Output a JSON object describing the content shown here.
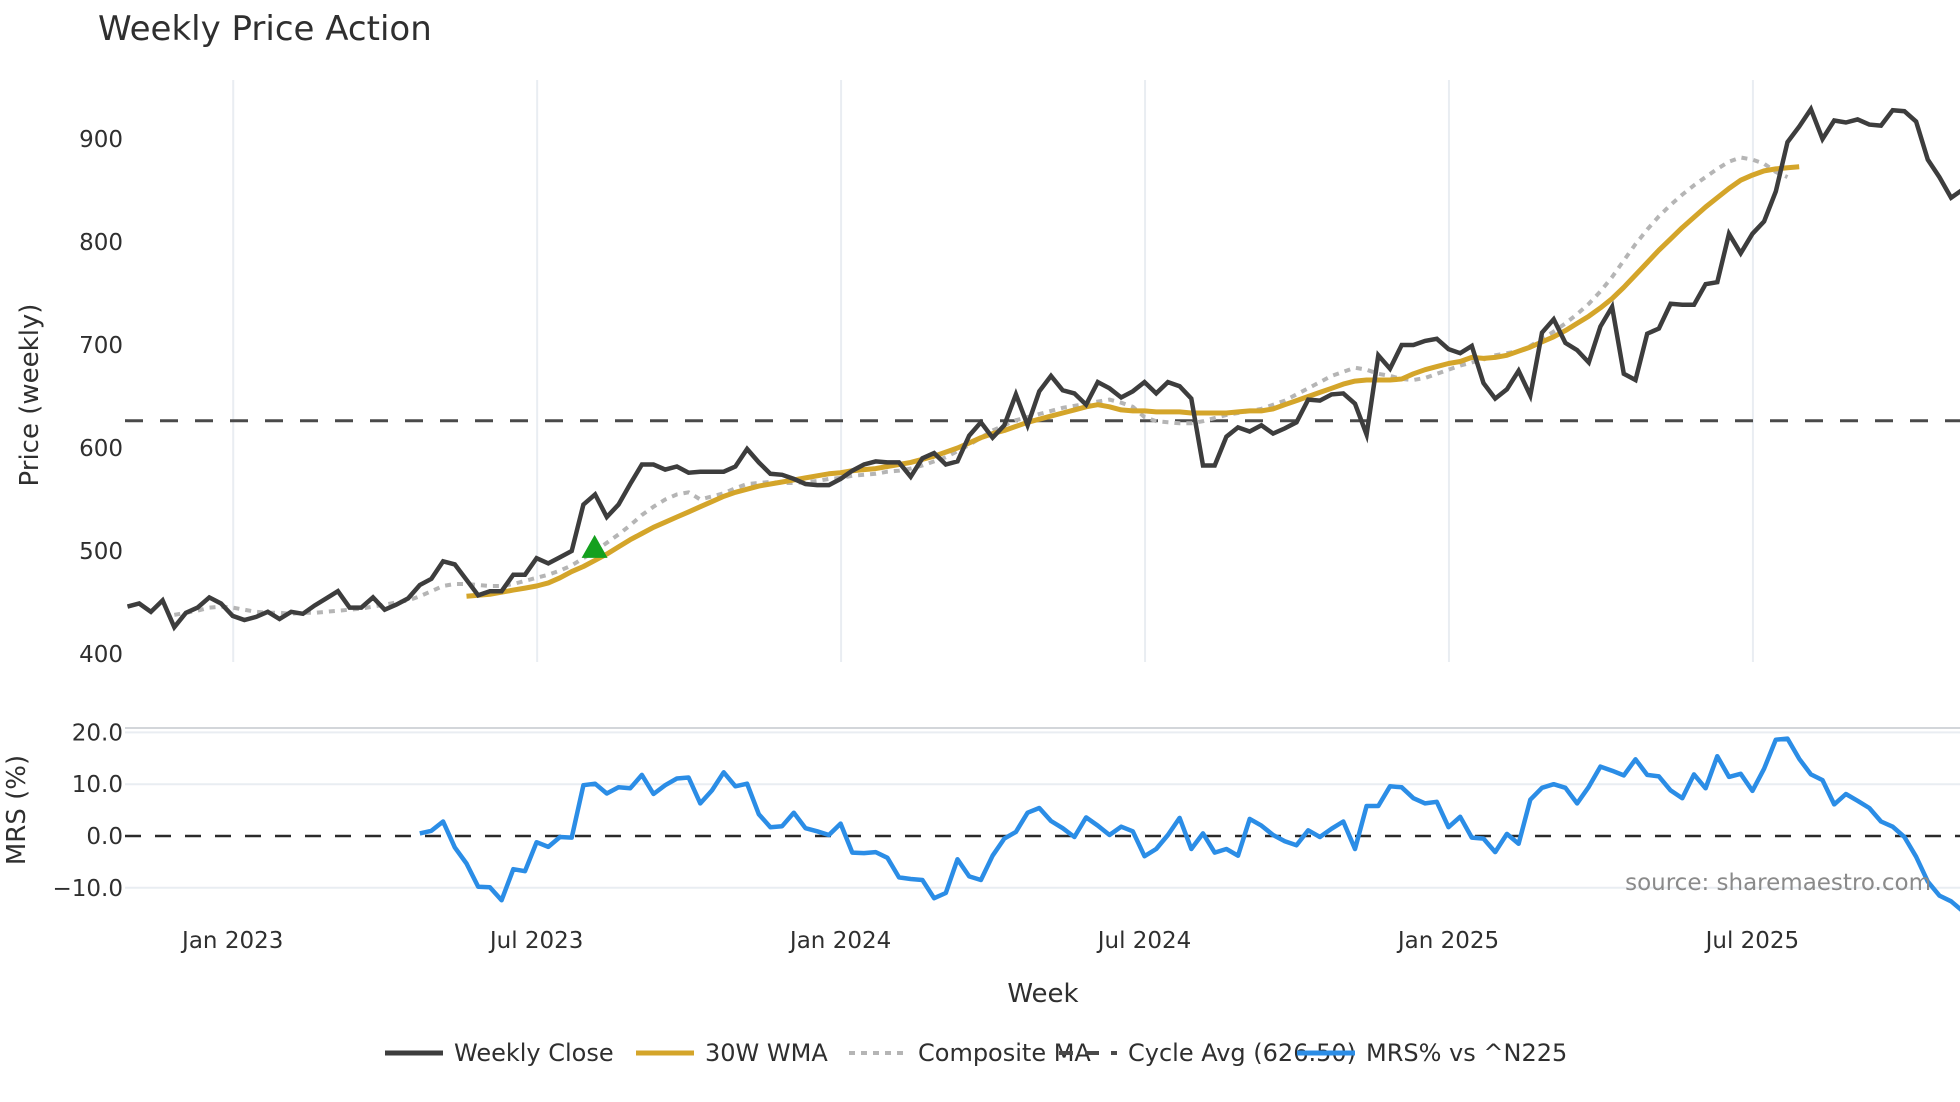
{
  "title": "Weekly Price Action",
  "source_label": "source: sharemaestro.com",
  "colors": {
    "weekly_close": "#3d3d3d",
    "wma": "#d4a52a",
    "composite": "#b5b5b5",
    "cycle_avg": "#4a4a4a",
    "mrs": "#2b8de6",
    "signal": "#14a01e",
    "grid": "#e9edf2"
  },
  "legend": [
    {
      "label": "Weekly Close",
      "style": "solid",
      "color": "#3d3d3d"
    },
    {
      "label": "30W WMA",
      "style": "solid",
      "color": "#d4a52a"
    },
    {
      "label": "Composite MA",
      "style": "dotted",
      "color": "#b5b5b5"
    },
    {
      "label": "Cycle Avg (626.50)",
      "style": "dashed",
      "color": "#4a4a4a"
    },
    {
      "label": "MRS% vs ^N225",
      "style": "solid",
      "color": "#2b8de6"
    }
  ],
  "chart_data": [
    {
      "type": "line",
      "title": "Weekly Price Action",
      "xlabel": "Week",
      "ylabel": "Price (weekly)",
      "ylim": [
        400,
        950
      ],
      "yticks": [
        400,
        500,
        600,
        700,
        800,
        900
      ],
      "xticks": [
        "Jan 2023",
        "Jul 2023",
        "Jan 2024",
        "Jul 2024",
        "Jan 2025",
        "Jul 2025"
      ],
      "xtick_week_index": [
        9,
        35,
        61,
        87,
        113,
        139
      ],
      "x_start": "2022-10-31",
      "x_step": "1 week",
      "grid": true,
      "series": [
        {
          "name": "Weekly Close",
          "values": [
            446,
            449,
            441,
            452,
            426,
            440,
            445,
            455,
            449,
            437,
            433,
            436,
            441,
            434,
            441,
            439,
            447,
            454,
            461,
            445,
            445,
            455,
            443,
            448,
            454,
            467,
            473,
            490,
            487,
            472,
            457,
            461,
            461,
            477,
            477,
            493,
            488,
            494,
            500,
            545,
            555,
            533,
            545,
            565,
            584,
            584,
            579,
            582,
            576,
            577,
            577,
            577,
            582,
            599,
            586,
            575,
            574,
            570,
            565,
            564,
            564,
            570,
            578,
            584,
            587,
            586,
            586,
            572,
            590,
            595,
            584,
            587,
            612,
            625,
            610,
            622,
            652,
            622,
            655,
            670,
            656,
            653,
            642,
            664,
            658,
            649,
            655,
            664,
            653,
            664,
            660,
            648,
            583,
            583,
            611,
            620,
            616,
            622,
            614,
            619,
            625,
            647,
            646,
            652,
            653,
            643,
            613,
            690,
            677,
            700,
            700,
            704,
            706,
            696,
            692,
            699,
            663,
            648,
            657,
            675,
            651,
            712,
            725,
            702,
            695,
            683,
            718,
            737,
            672,
            666,
            711,
            716,
            740,
            739,
            739,
            759,
            761,
            808,
            789,
            808,
            820,
            849,
            897,
            912,
            929,
            900,
            918,
            916,
            919,
            914,
            913,
            928,
            927,
            917,
            880,
            863,
            843,
            851,
            854
          ]
        },
        {
          "name": "30W WMA",
          "start_index": 29,
          "values": [
            456,
            457,
            458,
            460,
            462,
            464,
            466,
            469,
            474,
            480,
            485,
            491,
            497,
            504,
            511,
            517,
            523,
            528,
            533,
            538,
            543,
            548,
            553,
            557,
            560,
            563,
            565,
            567,
            569,
            571,
            573,
            575,
            576,
            578,
            579,
            580,
            582,
            584,
            586,
            589,
            592,
            596,
            600,
            605,
            610,
            614,
            617,
            621,
            625,
            628,
            631,
            634,
            637,
            640,
            642,
            640,
            637,
            636,
            636,
            635,
            635,
            635,
            634,
            634,
            634,
            634,
            635,
            636,
            636,
            638,
            642,
            646,
            650,
            654,
            658,
            662,
            665,
            666,
            666,
            666,
            667,
            672,
            676,
            679,
            682,
            684,
            688,
            687,
            688,
            690,
            694,
            698,
            703,
            708,
            714,
            721,
            728,
            736,
            745,
            756,
            768,
            780,
            792,
            803,
            814,
            824,
            834,
            843,
            852,
            860,
            865,
            869,
            871,
            872,
            873
          ]
        },
        {
          "name": "Composite MA",
          "start_index": 4,
          "values": [
            438,
            440,
            442,
            445,
            446,
            445,
            443,
            441,
            440,
            440,
            439,
            440,
            440,
            441,
            442,
            443,
            444,
            446,
            448,
            450,
            452,
            456,
            461,
            466,
            468,
            468,
            467,
            466,
            466,
            468,
            471,
            474,
            477,
            481,
            486,
            493,
            500,
            508,
            516,
            525,
            535,
            543,
            550,
            555,
            557,
            550,
            553,
            556,
            561,
            565,
            566,
            567,
            566,
            566,
            567,
            568,
            570,
            571,
            573,
            574,
            575,
            577,
            578,
            580,
            583,
            587,
            591,
            597,
            603,
            610,
            617,
            622,
            627,
            630,
            633,
            636,
            639,
            641,
            643,
            645,
            647,
            644,
            640,
            630,
            626,
            625,
            624,
            624,
            626,
            629,
            632,
            634,
            636,
            638,
            642,
            646,
            652,
            658,
            664,
            670,
            674,
            678,
            676,
            672,
            670,
            667,
            666,
            668,
            672,
            676,
            680,
            683,
            686,
            690,
            692,
            694,
            699,
            706,
            713,
            721,
            730,
            740,
            752,
            766,
            782,
            798,
            812,
            825,
            836,
            846,
            855,
            863,
            871,
            878,
            882,
            880,
            876,
            868,
            863
          ]
        },
        {
          "name": "Cycle Avg (626.50)",
          "constant": 626.5
        }
      ],
      "annotations": [
        {
          "type": "triangle-up",
          "index": 40,
          "value": 503,
          "color": "#14a01e"
        }
      ]
    },
    {
      "type": "line",
      "ylabel": "MRS (%)",
      "ylim": [
        -14,
        21
      ],
      "yticks": [
        -10.0,
        0.0,
        10.0,
        20.0
      ],
      "ytick_labels": [
        "−10.0",
        "0.0",
        "10.0",
        "20.0"
      ],
      "reference_line": 0.0,
      "series": [
        {
          "name": "MRS% vs ^N225",
          "start_index": 25,
          "values": [
            0.5,
            1.0,
            2.8,
            -2.2,
            -5.3,
            -9.8,
            -9.9,
            -12.4,
            -6.4,
            -6.8,
            -1.2,
            -2.1,
            -0.2,
            -0.3,
            9.8,
            10.1,
            8.2,
            9.4,
            9.2,
            11.8,
            8.1,
            9.8,
            11.1,
            11.3,
            6.3,
            8.8,
            12.3,
            9.6,
            10.1,
            4.2,
            1.7,
            1.9,
            4.5,
            1.5,
            0.9,
            0.2,
            2.4,
            -3.2,
            -3.3,
            -3.1,
            -4.2,
            -8.0,
            -8.3,
            -8.5,
            -12.0,
            -11.0,
            -4.5,
            -7.8,
            -8.5,
            -3.8,
            -0.5,
            0.8,
            4.5,
            5.4,
            2.9,
            1.5,
            -0.2,
            3.6,
            2.0,
            0.2,
            1.8,
            0.9,
            -3.9,
            -2.5,
            0.2,
            3.5,
            -2.5,
            0.5,
            -3.2,
            -2.5,
            -3.8,
            3.3,
            2.0,
            0.2,
            -1.0,
            -1.8,
            1.1,
            -0.2,
            1.4,
            2.8,
            -2.5,
            5.8,
            5.8,
            9.6,
            9.4,
            7.3,
            6.3,
            6.6,
            1.7,
            3.7,
            -0.3,
            -0.5,
            -3.1,
            0.4,
            -1.5,
            7.0,
            9.3,
            10.0,
            9.3,
            6.3,
            9.5,
            13.4,
            12.6,
            11.7,
            14.8,
            11.8,
            11.5,
            8.8,
            7.3,
            11.9,
            9.2,
            15.4,
            11.4,
            12.0,
            8.7,
            13.0,
            18.6,
            18.8,
            14.9,
            11.9,
            10.8,
            6.1,
            8.1,
            6.8,
            5.4,
            2.8,
            1.8,
            -0.2,
            -4.0,
            -8.8,
            -11.5,
            -12.6,
            -14.5,
            -15.0
          ]
        }
      ]
    }
  ]
}
